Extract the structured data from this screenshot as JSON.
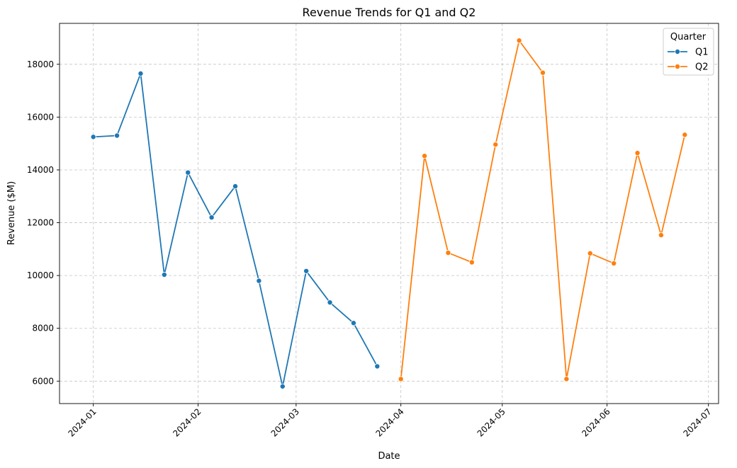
{
  "chart_data": {
    "type": "line",
    "title": "Revenue Trends for Q1 and Q2",
    "xlabel": "Date",
    "ylabel": "Revenue ($M)",
    "xlim": [
      "2023-12-22",
      "2024-07-04"
    ],
    "ylim": [
      5150,
      19550
    ],
    "grid": true,
    "legend": {
      "title": "Quarter",
      "placement": "top-right"
    },
    "x_ticks": [
      "2024-01",
      "2024-02",
      "2024-03",
      "2024-04",
      "2024-05",
      "2024-06",
      "2024-07"
    ],
    "x_tick_dates": [
      "2024-01-01",
      "2024-02-01",
      "2024-03-01",
      "2024-04-01",
      "2024-05-01",
      "2024-06-01",
      "2024-07-01"
    ],
    "y_ticks": [
      6000,
      8000,
      10000,
      12000,
      14000,
      16000,
      18000
    ],
    "series": [
      {
        "name": "Q1",
        "color": "#1f77b4",
        "points": [
          {
            "x": "2024-01-01",
            "y": 15250
          },
          {
            "x": "2024-01-08",
            "y": 15300
          },
          {
            "x": "2024-01-15",
            "y": 17650
          },
          {
            "x": "2024-01-22",
            "y": 10030
          },
          {
            "x": "2024-01-29",
            "y": 13900
          },
          {
            "x": "2024-02-05",
            "y": 12200
          },
          {
            "x": "2024-02-12",
            "y": 13380
          },
          {
            "x": "2024-02-19",
            "y": 9800
          },
          {
            "x": "2024-02-26",
            "y": 5800
          },
          {
            "x": "2024-03-04",
            "y": 10170
          },
          {
            "x": "2024-03-11",
            "y": 8980
          },
          {
            "x": "2024-03-18",
            "y": 8200
          },
          {
            "x": "2024-03-25",
            "y": 6560
          }
        ]
      },
      {
        "name": "Q2",
        "color": "#ff7f0e",
        "points": [
          {
            "x": "2024-04-01",
            "y": 6080
          },
          {
            "x": "2024-04-08",
            "y": 14530
          },
          {
            "x": "2024-04-15",
            "y": 10860
          },
          {
            "x": "2024-04-22",
            "y": 10500
          },
          {
            "x": "2024-04-29",
            "y": 14960
          },
          {
            "x": "2024-05-06",
            "y": 18900
          },
          {
            "x": "2024-05-13",
            "y": 17680
          },
          {
            "x": "2024-05-20",
            "y": 6080
          },
          {
            "x": "2024-05-27",
            "y": 10840
          },
          {
            "x": "2024-06-03",
            "y": 10460
          },
          {
            "x": "2024-06-10",
            "y": 14640
          },
          {
            "x": "2024-06-17",
            "y": 11530
          },
          {
            "x": "2024-06-24",
            "y": 15330
          }
        ]
      }
    ]
  }
}
